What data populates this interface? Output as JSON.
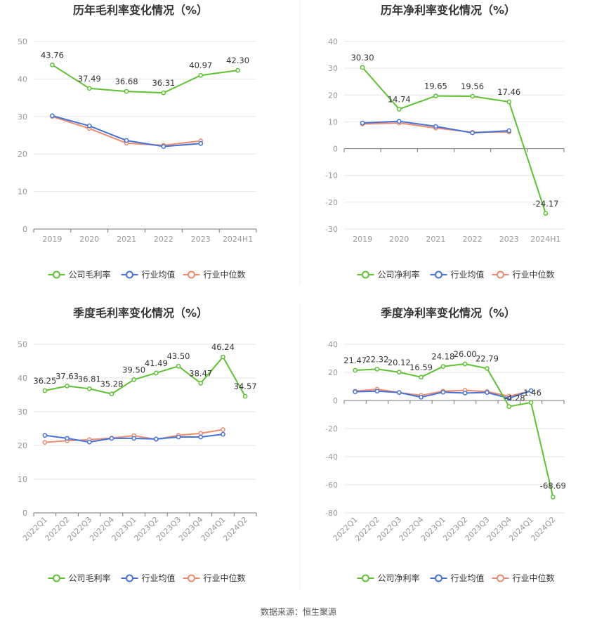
{
  "source": "数据来源：恒生聚源",
  "legend_labels": [
    "行业均值",
    "行业中位数"
  ],
  "colors": {
    "company": "#5cc230",
    "mean": "#4472db",
    "median": "#f08a6c"
  },
  "chart_data": [
    {
      "type": "line",
      "title": "历年毛利率变化情况（%）",
      "categories": [
        "2019",
        "2020",
        "2021",
        "2022",
        "2023",
        "2024H1"
      ],
      "ylim": [
        0,
        50
      ],
      "yticks": [
        0,
        10,
        20,
        30,
        40,
        50
      ],
      "grid": true,
      "legend_position": "bottom",
      "series": [
        {
          "name": "公司毛利率",
          "role": "company",
          "labeled": true,
          "values": [
            43.76,
            37.49,
            36.68,
            36.31,
            40.97,
            42.3
          ]
        },
        {
          "name": "行业均值",
          "role": "mean",
          "values": [
            30.2,
            27.5,
            23.6,
            22.0,
            22.8,
            null
          ]
        },
        {
          "name": "行业中位数",
          "role": "median",
          "values": [
            30.0,
            26.8,
            22.9,
            22.3,
            23.5,
            null
          ]
        }
      ]
    },
    {
      "type": "line",
      "title": "历年净利率变化情况（%）",
      "categories": [
        "2019",
        "2020",
        "2021",
        "2022",
        "2023",
        "2024H1"
      ],
      "ylim": [
        -30,
        40
      ],
      "yticks": [
        -30,
        -20,
        -10,
        0,
        10,
        20,
        30,
        40
      ],
      "grid": true,
      "legend_position": "bottom",
      "series": [
        {
          "name": "公司净利率",
          "role": "company",
          "labeled": true,
          "values": [
            30.3,
            14.74,
            19.65,
            19.56,
            17.46,
            -24.17
          ]
        },
        {
          "name": "行业均值",
          "role": "mean",
          "values": [
            9.6,
            10.2,
            8.3,
            5.9,
            6.7,
            null
          ]
        },
        {
          "name": "行业中位数",
          "role": "median",
          "values": [
            9.2,
            9.6,
            7.7,
            6.1,
            6.2,
            null
          ]
        }
      ]
    },
    {
      "type": "line",
      "title": "季度毛利率变化情况（%）",
      "categories": [
        "2022Q1",
        "2022Q2",
        "2022Q3",
        "2022Q4",
        "2023Q1",
        "2023Q2",
        "2023Q3",
        "2023Q4",
        "2024Q1",
        "2024Q2"
      ],
      "rotate_labels": true,
      "ylim": [
        0,
        50
      ],
      "yticks": [
        0,
        10,
        20,
        30,
        40,
        50
      ],
      "grid": true,
      "legend_position": "bottom",
      "series": [
        {
          "name": "公司毛利率",
          "role": "company",
          "labeled": true,
          "values": [
            36.25,
            37.63,
            36.81,
            35.28,
            39.5,
            41.49,
            43.5,
            38.47,
            46.24,
            34.57
          ]
        },
        {
          "name": "行业均值",
          "role": "mean",
          "values": [
            23.0,
            22.1,
            21.0,
            22.1,
            22.1,
            21.9,
            22.5,
            22.5,
            23.3,
            null
          ]
        },
        {
          "name": "行业中位数",
          "role": "median",
          "values": [
            20.9,
            21.4,
            21.7,
            22.2,
            22.9,
            21.8,
            23.0,
            23.6,
            24.7,
            null
          ]
        }
      ]
    },
    {
      "type": "line",
      "title": "季度净利率变化情况（%）",
      "categories": [
        "2022Q1",
        "2022Q2",
        "2022Q3",
        "2022Q4",
        "2023Q1",
        "2023Q2",
        "2023Q3",
        "2023Q4",
        "2024Q1",
        "2024Q2"
      ],
      "rotate_labels": true,
      "ylim": [
        -80,
        40
      ],
      "yticks": [
        -80,
        -60,
        -40,
        -20,
        0,
        20,
        40
      ],
      "grid": true,
      "legend_position": "bottom",
      "series": [
        {
          "name": "公司净利率",
          "role": "company",
          "labeled": true,
          "values": [
            21.47,
            22.32,
            20.12,
            16.59,
            24.18,
            26.0,
            22.79,
            -4.28,
            -1.46,
            -68.69
          ]
        },
        {
          "name": "行业均值",
          "role": "mean",
          "values": [
            6.2,
            6.6,
            5.7,
            2.3,
            5.9,
            5.3,
            5.7,
            1.6,
            7.0,
            null
          ]
        },
        {
          "name": "行业中位数",
          "role": "median",
          "values": [
            6.6,
            8.0,
            5.6,
            3.6,
            6.6,
            7.2,
            6.3,
            3.0,
            6.8,
            null
          ]
        }
      ]
    }
  ]
}
